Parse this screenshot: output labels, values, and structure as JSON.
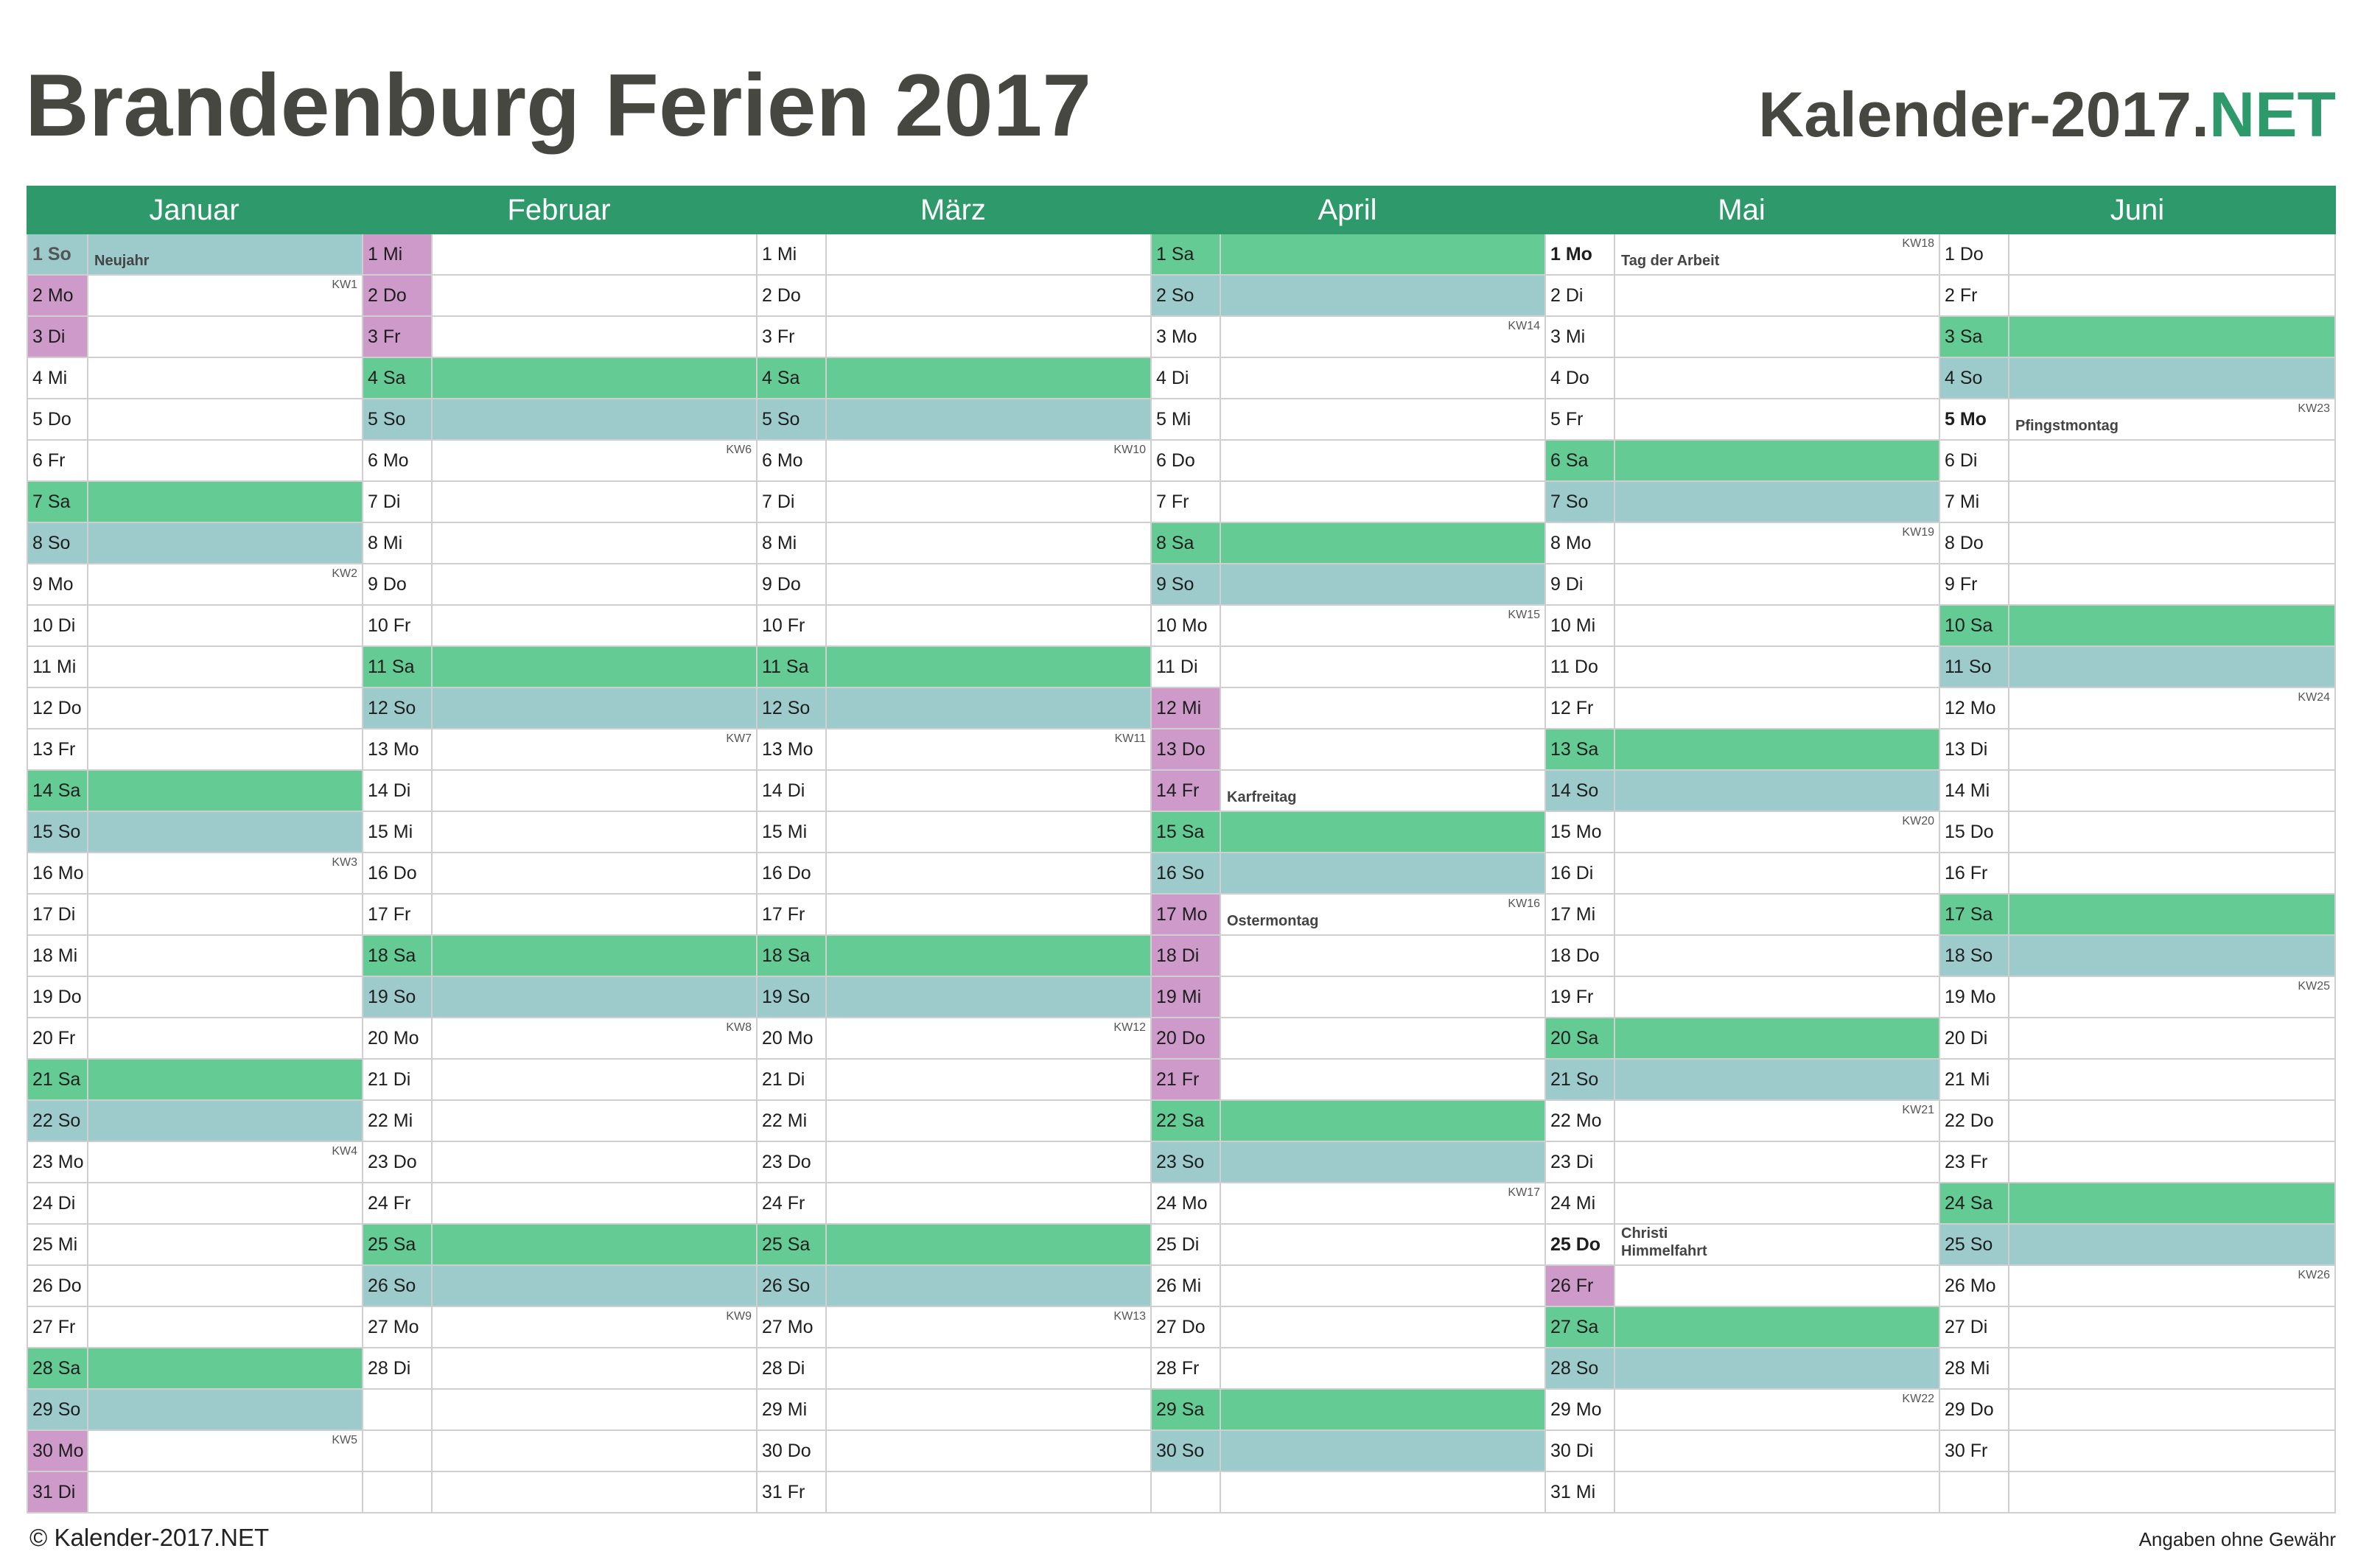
{
  "title": "Brandenburg Ferien 2017",
  "brand": {
    "name": "Kalender-2017.",
    "tld": "NET"
  },
  "colors": {
    "header": "#2e9a6c",
    "saturday": "#64cb94",
    "sunday": "#9dcbcb",
    "vacation": "#cd9ac9"
  },
  "footer": {
    "copyright": "© Kalender-2017.NET",
    "disclaimer": "Angaben ohne Gewähr"
  },
  "months": [
    {
      "name": "Januar",
      "days": [
        {
          "d": "1 So",
          "t": "sunh",
          "h": "Neujahr",
          "b": true
        },
        {
          "d": "2 Mo",
          "t": "vac",
          "kw": "KW1"
        },
        {
          "d": "3 Di",
          "t": "vac"
        },
        {
          "d": "4 Mi"
        },
        {
          "d": "5 Do"
        },
        {
          "d": "6 Fr"
        },
        {
          "d": "7 Sa",
          "t": "sat"
        },
        {
          "d": "8 So",
          "t": "sun"
        },
        {
          "d": "9 Mo",
          "kw": "KW2"
        },
        {
          "d": "10 Di"
        },
        {
          "d": "11 Mi"
        },
        {
          "d": "12 Do"
        },
        {
          "d": "13 Fr"
        },
        {
          "d": "14 Sa",
          "t": "sat"
        },
        {
          "d": "15 So",
          "t": "sun"
        },
        {
          "d": "16 Mo",
          "kw": "KW3"
        },
        {
          "d": "17 Di"
        },
        {
          "d": "18 Mi"
        },
        {
          "d": "19 Do"
        },
        {
          "d": "20 Fr"
        },
        {
          "d": "21 Sa",
          "t": "sat"
        },
        {
          "d": "22 So",
          "t": "sun"
        },
        {
          "d": "23 Mo",
          "kw": "KW4"
        },
        {
          "d": "24 Di"
        },
        {
          "d": "25 Mi"
        },
        {
          "d": "26 Do"
        },
        {
          "d": "27 Fr"
        },
        {
          "d": "28 Sa",
          "t": "sat"
        },
        {
          "d": "29 So",
          "t": "sun"
        },
        {
          "d": "30 Mo",
          "t": "vac",
          "kw": "KW5"
        },
        {
          "d": "31 Di",
          "t": "vac"
        }
      ]
    },
    {
      "name": "Februar",
      "days": [
        {
          "d": "1 Mi",
          "t": "vac"
        },
        {
          "d": "2 Do",
          "t": "vac"
        },
        {
          "d": "3 Fr",
          "t": "vac"
        },
        {
          "d": "4 Sa",
          "t": "sat"
        },
        {
          "d": "5 So",
          "t": "sun"
        },
        {
          "d": "6 Mo",
          "kw": "KW6"
        },
        {
          "d": "7 Di"
        },
        {
          "d": "8 Mi"
        },
        {
          "d": "9 Do"
        },
        {
          "d": "10 Fr"
        },
        {
          "d": "11 Sa",
          "t": "sat"
        },
        {
          "d": "12 So",
          "t": "sun"
        },
        {
          "d": "13 Mo",
          "kw": "KW7"
        },
        {
          "d": "14 Di"
        },
        {
          "d": "15 Mi"
        },
        {
          "d": "16 Do"
        },
        {
          "d": "17 Fr"
        },
        {
          "d": "18 Sa",
          "t": "sat"
        },
        {
          "d": "19 So",
          "t": "sun"
        },
        {
          "d": "20 Mo",
          "kw": "KW8"
        },
        {
          "d": "21 Di"
        },
        {
          "d": "22 Mi"
        },
        {
          "d": "23 Do"
        },
        {
          "d": "24 Fr"
        },
        {
          "d": "25 Sa",
          "t": "sat"
        },
        {
          "d": "26 So",
          "t": "sun"
        },
        {
          "d": "27 Mo",
          "kw": "KW9"
        },
        {
          "d": "28 Di"
        },
        {
          "d": "",
          "t": "empty"
        },
        {
          "d": "",
          "t": "empty"
        },
        {
          "d": "",
          "t": "empty"
        }
      ]
    },
    {
      "name": "März",
      "days": [
        {
          "d": "1 Mi"
        },
        {
          "d": "2 Do"
        },
        {
          "d": "3 Fr"
        },
        {
          "d": "4 Sa",
          "t": "sat"
        },
        {
          "d": "5 So",
          "t": "sun"
        },
        {
          "d": "6 Mo",
          "kw": "KW10"
        },
        {
          "d": "7 Di"
        },
        {
          "d": "8 Mi"
        },
        {
          "d": "9 Do"
        },
        {
          "d": "10 Fr"
        },
        {
          "d": "11 Sa",
          "t": "sat"
        },
        {
          "d": "12 So",
          "t": "sun"
        },
        {
          "d": "13 Mo",
          "kw": "KW11"
        },
        {
          "d": "14 Di"
        },
        {
          "d": "15 Mi"
        },
        {
          "d": "16 Do"
        },
        {
          "d": "17 Fr"
        },
        {
          "d": "18 Sa",
          "t": "sat"
        },
        {
          "d": "19 So",
          "t": "sun"
        },
        {
          "d": "20 Mo",
          "kw": "KW12"
        },
        {
          "d": "21 Di"
        },
        {
          "d": "22 Mi"
        },
        {
          "d": "23 Do"
        },
        {
          "d": "24 Fr"
        },
        {
          "d": "25 Sa",
          "t": "sat"
        },
        {
          "d": "26 So",
          "t": "sun"
        },
        {
          "d": "27 Mo",
          "kw": "KW13"
        },
        {
          "d": "28 Di"
        },
        {
          "d": "29 Mi"
        },
        {
          "d": "30 Do"
        },
        {
          "d": "31 Fr"
        }
      ]
    },
    {
      "name": "April",
      "days": [
        {
          "d": "1 Sa",
          "t": "sat"
        },
        {
          "d": "2 So",
          "t": "sun"
        },
        {
          "d": "3 Mo",
          "kw": "KW14"
        },
        {
          "d": "4 Di"
        },
        {
          "d": "5 Mi"
        },
        {
          "d": "6 Do"
        },
        {
          "d": "7 Fr"
        },
        {
          "d": "8 Sa",
          "t": "sat"
        },
        {
          "d": "9 So",
          "t": "sun"
        },
        {
          "d": "10 Mo",
          "kw": "KW15"
        },
        {
          "d": "11 Di"
        },
        {
          "d": "12 Mi",
          "t": "vac"
        },
        {
          "d": "13 Do",
          "t": "vac"
        },
        {
          "d": "14 Fr",
          "t": "vac",
          "h": "Karfreitag"
        },
        {
          "d": "15 Sa",
          "t": "sat"
        },
        {
          "d": "16 So",
          "t": "sun"
        },
        {
          "d": "17 Mo",
          "t": "vac",
          "kw": "KW16",
          "h": "Ostermontag"
        },
        {
          "d": "18 Di",
          "t": "vac"
        },
        {
          "d": "19 Mi",
          "t": "vac"
        },
        {
          "d": "20 Do",
          "t": "vac"
        },
        {
          "d": "21 Fr",
          "t": "vac"
        },
        {
          "d": "22 Sa",
          "t": "sat"
        },
        {
          "d": "23 So",
          "t": "sun"
        },
        {
          "d": "24 Mo",
          "kw": "KW17"
        },
        {
          "d": "25 Di"
        },
        {
          "d": "26 Mi"
        },
        {
          "d": "27 Do"
        },
        {
          "d": "28 Fr"
        },
        {
          "d": "29 Sa",
          "t": "sat"
        },
        {
          "d": "30 So",
          "t": "sun"
        },
        {
          "d": "",
          "t": "empty"
        }
      ]
    },
    {
      "name": "Mai",
      "days": [
        {
          "d": "1 Mo",
          "kw": "KW18",
          "h": "Tag der Arbeit",
          "b": true
        },
        {
          "d": "2 Di"
        },
        {
          "d": "3 Mi"
        },
        {
          "d": "4 Do"
        },
        {
          "d": "5 Fr"
        },
        {
          "d": "6 Sa",
          "t": "sat"
        },
        {
          "d": "7 So",
          "t": "sun"
        },
        {
          "d": "8 Mo",
          "kw": "KW19"
        },
        {
          "d": "9 Di"
        },
        {
          "d": "10 Mi"
        },
        {
          "d": "11 Do"
        },
        {
          "d": "12 Fr"
        },
        {
          "d": "13 Sa",
          "t": "sat"
        },
        {
          "d": "14 So",
          "t": "sun"
        },
        {
          "d": "15 Mo",
          "kw": "KW20"
        },
        {
          "d": "16 Di"
        },
        {
          "d": "17 Mi"
        },
        {
          "d": "18 Do"
        },
        {
          "d": "19 Fr"
        },
        {
          "d": "20 Sa",
          "t": "sat"
        },
        {
          "d": "21 So",
          "t": "sun"
        },
        {
          "d": "22 Mo",
          "kw": "KW21"
        },
        {
          "d": "23 Di"
        },
        {
          "d": "24 Mi"
        },
        {
          "d": "25 Do",
          "h": "Christi\nHimmelfahrt",
          "b": true
        },
        {
          "d": "26 Fr",
          "t": "vac"
        },
        {
          "d": "27 Sa",
          "t": "sat"
        },
        {
          "d": "28 So",
          "t": "sun"
        },
        {
          "d": "29 Mo",
          "kw": "KW22"
        },
        {
          "d": "30 Di"
        },
        {
          "d": "31 Mi"
        }
      ]
    },
    {
      "name": "Juni",
      "days": [
        {
          "d": "1 Do"
        },
        {
          "d": "2 Fr"
        },
        {
          "d": "3 Sa",
          "t": "sat"
        },
        {
          "d": "4 So",
          "t": "sun"
        },
        {
          "d": "5 Mo",
          "kw": "KW23",
          "h": "Pfingstmontag",
          "b": true
        },
        {
          "d": "6 Di"
        },
        {
          "d": "7 Mi"
        },
        {
          "d": "8 Do"
        },
        {
          "d": "9 Fr"
        },
        {
          "d": "10 Sa",
          "t": "sat"
        },
        {
          "d": "11 So",
          "t": "sun"
        },
        {
          "d": "12 Mo",
          "kw": "KW24"
        },
        {
          "d": "13 Di"
        },
        {
          "d": "14 Mi"
        },
        {
          "d": "15 Do"
        },
        {
          "d": "16 Fr"
        },
        {
          "d": "17 Sa",
          "t": "sat"
        },
        {
          "d": "18 So",
          "t": "sun"
        },
        {
          "d": "19 Mo",
          "kw": "KW25"
        },
        {
          "d": "20 Di"
        },
        {
          "d": "21 Mi"
        },
        {
          "d": "22 Do"
        },
        {
          "d": "23 Fr"
        },
        {
          "d": "24 Sa",
          "t": "sat"
        },
        {
          "d": "25 So",
          "t": "sun"
        },
        {
          "d": "26 Mo",
          "kw": "KW26"
        },
        {
          "d": "27 Di"
        },
        {
          "d": "28 Mi"
        },
        {
          "d": "29 Do"
        },
        {
          "d": "30 Fr"
        },
        {
          "d": "",
          "t": "empty"
        }
      ]
    }
  ]
}
